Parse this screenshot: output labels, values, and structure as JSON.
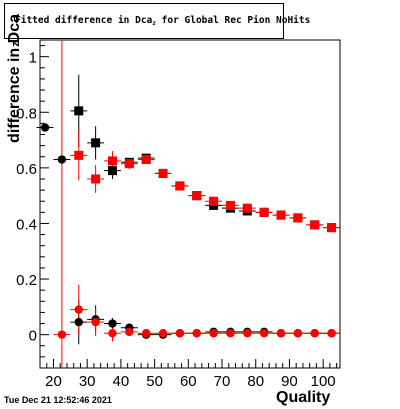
{
  "chart_data": {
    "type": "scatter",
    "title": "Fitted difference in Dca",
    "title_subscript": "z",
    "title_suffix": " for Global Rec Pion NoHits",
    "ylabel": "difference in Dca",
    "ylabel_subscript": "z",
    "xlabel": "Quality",
    "xlim": [
      16,
      105
    ],
    "ylim": [
      -0.12,
      1.06
    ],
    "x_ticks": [
      20,
      30,
      40,
      50,
      60,
      70,
      80,
      90,
      100
    ],
    "y_ticks": [
      0,
      0.2,
      0.4,
      0.6,
      0.8,
      1
    ],
    "series": [
      {
        "color": "#000000",
        "points": [
          {
            "x": 17.5,
            "y": 0.745,
            "err": 0.0,
            "marker": "circle"
          },
          {
            "x": 22.5,
            "y": 0.63,
            "err": 0.0,
            "marker": "circle"
          },
          {
            "x": 27.5,
            "y": 0.805,
            "err": 0.13,
            "marker": "square"
          },
          {
            "x": 32.5,
            "y": 0.69,
            "err": 0.06,
            "marker": "square"
          },
          {
            "x": 37.5,
            "y": 0.59,
            "err": 0.03,
            "marker": "square"
          },
          {
            "x": 42.5,
            "y": 0.62,
            "err": 0.015,
            "marker": "square"
          },
          {
            "x": 47.5,
            "y": 0.635,
            "err": 0.01,
            "marker": "square"
          },
          {
            "x": 52.5,
            "y": 0.58,
            "err": 0.008,
            "marker": "square"
          },
          {
            "x": 57.5,
            "y": 0.535,
            "err": 0.007,
            "marker": "square"
          },
          {
            "x": 62.5,
            "y": 0.5,
            "err": 0.006,
            "marker": "square"
          },
          {
            "x": 67.5,
            "y": 0.465,
            "err": 0.006,
            "marker": "square"
          },
          {
            "x": 72.5,
            "y": 0.455,
            "err": 0.005,
            "marker": "square"
          },
          {
            "x": 77.5,
            "y": 0.445,
            "err": 0.005,
            "marker": "square"
          },
          {
            "x": 82.5,
            "y": 0.44,
            "err": 0.005,
            "marker": "square"
          },
          {
            "x": 87.5,
            "y": 0.43,
            "err": 0.005,
            "marker": "square"
          },
          {
            "x": 92.5,
            "y": 0.42,
            "err": 0.005,
            "marker": "square"
          },
          {
            "x": 97.5,
            "y": 0.395,
            "err": 0.005,
            "marker": "square"
          },
          {
            "x": 102.5,
            "y": 0.385,
            "err": 0.005,
            "marker": "square"
          },
          {
            "x": 27.5,
            "y": 0.045,
            "err": 0.08,
            "marker": "circle"
          },
          {
            "x": 32.5,
            "y": 0.055,
            "err": 0.05,
            "marker": "circle"
          },
          {
            "x": 37.5,
            "y": 0.04,
            "err": 0.02,
            "marker": "circle"
          },
          {
            "x": 42.5,
            "y": 0.025,
            "err": 0.01,
            "marker": "circle"
          },
          {
            "x": 47.5,
            "y": 0.0,
            "err": 0.008,
            "marker": "circle"
          },
          {
            "x": 52.5,
            "y": 0.0,
            "err": 0.006,
            "marker": "circle"
          },
          {
            "x": 57.5,
            "y": 0.005,
            "err": 0.005,
            "marker": "circle"
          },
          {
            "x": 62.5,
            "y": 0.005,
            "err": 0.005,
            "marker": "circle"
          },
          {
            "x": 67.5,
            "y": 0.01,
            "err": 0.005,
            "marker": "circle"
          },
          {
            "x": 72.5,
            "y": 0.01,
            "err": 0.005,
            "marker": "circle"
          },
          {
            "x": 77.5,
            "y": 0.01,
            "err": 0.005,
            "marker": "circle"
          },
          {
            "x": 82.5,
            "y": 0.01,
            "err": 0.005,
            "marker": "circle"
          },
          {
            "x": 87.5,
            "y": 0.005,
            "err": 0.005,
            "marker": "circle"
          },
          {
            "x": 92.5,
            "y": 0.005,
            "err": 0.005,
            "marker": "circle"
          },
          {
            "x": 97.5,
            "y": 0.005,
            "err": 0.005,
            "marker": "circle"
          },
          {
            "x": 102.5,
            "y": 0.005,
            "err": 0.005,
            "marker": "circle"
          }
        ]
      },
      {
        "color": "#ff0000",
        "points": [
          {
            "x": 22.5,
            "y": 0.0,
            "err": 1.2,
            "marker": "circle"
          },
          {
            "x": 27.5,
            "y": 0.645,
            "err": 0.09,
            "marker": "square"
          },
          {
            "x": 32.5,
            "y": 0.56,
            "err": 0.05,
            "marker": "square"
          },
          {
            "x": 37.5,
            "y": 0.625,
            "err": 0.035,
            "marker": "square"
          },
          {
            "x": 42.5,
            "y": 0.615,
            "err": 0.02,
            "marker": "square"
          },
          {
            "x": 47.5,
            "y": 0.63,
            "err": 0.012,
            "marker": "square"
          },
          {
            "x": 52.5,
            "y": 0.58,
            "err": 0.008,
            "marker": "square"
          },
          {
            "x": 57.5,
            "y": 0.535,
            "err": 0.007,
            "marker": "square"
          },
          {
            "x": 62.5,
            "y": 0.5,
            "err": 0.006,
            "marker": "square"
          },
          {
            "x": 67.5,
            "y": 0.48,
            "err": 0.006,
            "marker": "square"
          },
          {
            "x": 72.5,
            "y": 0.465,
            "err": 0.005,
            "marker": "square"
          },
          {
            "x": 77.5,
            "y": 0.455,
            "err": 0.005,
            "marker": "square"
          },
          {
            "x": 82.5,
            "y": 0.44,
            "err": 0.005,
            "marker": "square"
          },
          {
            "x": 87.5,
            "y": 0.43,
            "err": 0.005,
            "marker": "square"
          },
          {
            "x": 92.5,
            "y": 0.42,
            "err": 0.005,
            "marker": "square"
          },
          {
            "x": 97.5,
            "y": 0.395,
            "err": 0.005,
            "marker": "square"
          },
          {
            "x": 102.5,
            "y": 0.385,
            "err": 0.005,
            "marker": "square"
          },
          {
            "x": 27.5,
            "y": 0.09,
            "err": 0.09,
            "marker": "circle"
          },
          {
            "x": 32.5,
            "y": 0.045,
            "err": 0.05,
            "marker": "circle"
          },
          {
            "x": 37.5,
            "y": 0.005,
            "err": 0.03,
            "marker": "circle"
          },
          {
            "x": 42.5,
            "y": 0.01,
            "err": 0.015,
            "marker": "circle"
          },
          {
            "x": 47.5,
            "y": 0.005,
            "err": 0.01,
            "marker": "circle"
          },
          {
            "x": 52.5,
            "y": 0.005,
            "err": 0.006,
            "marker": "circle"
          },
          {
            "x": 57.5,
            "y": 0.005,
            "err": 0.005,
            "marker": "circle"
          },
          {
            "x": 62.5,
            "y": 0.005,
            "err": 0.005,
            "marker": "circle"
          },
          {
            "x": 67.5,
            "y": 0.005,
            "err": 0.005,
            "marker": "circle"
          },
          {
            "x": 72.5,
            "y": 0.005,
            "err": 0.005,
            "marker": "circle"
          },
          {
            "x": 77.5,
            "y": 0.005,
            "err": 0.005,
            "marker": "circle"
          },
          {
            "x": 82.5,
            "y": 0.005,
            "err": 0.005,
            "marker": "circle"
          },
          {
            "x": 87.5,
            "y": 0.005,
            "err": 0.005,
            "marker": "circle"
          },
          {
            "x": 92.5,
            "y": 0.005,
            "err": 0.005,
            "marker": "circle"
          },
          {
            "x": 97.5,
            "y": 0.005,
            "err": 0.005,
            "marker": "circle"
          },
          {
            "x": 102.5,
            "y": 0.005,
            "err": 0.005,
            "marker": "circle"
          }
        ]
      }
    ],
    "grid": false,
    "legend": "none"
  },
  "footer": {
    "timestamp": "Tue Dec 21 12:52:46 2021"
  }
}
